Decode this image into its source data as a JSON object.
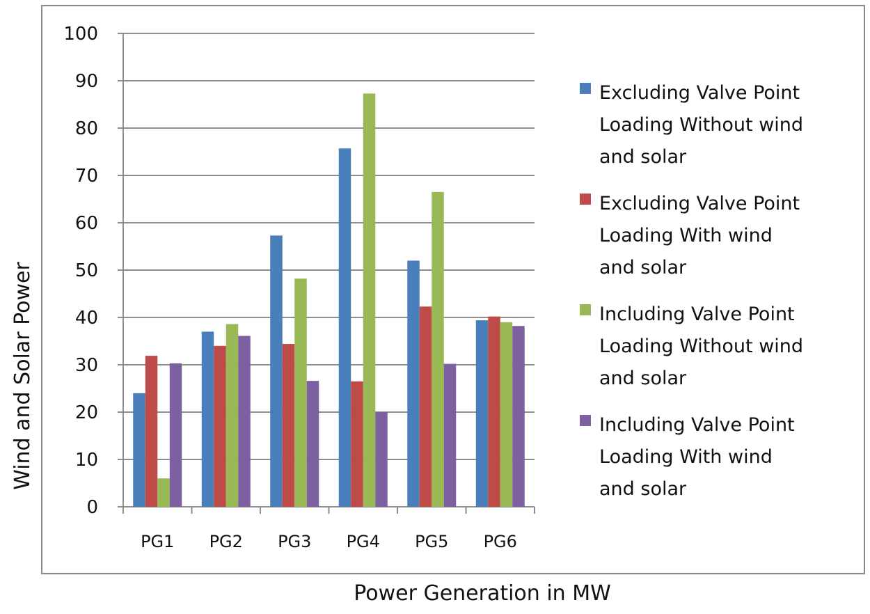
{
  "chart_data": {
    "type": "bar",
    "title": "",
    "xlabel": "Power Generation in MW",
    "ylabel": "Wind and Solar Power",
    "ylim": [
      0,
      100
    ],
    "yticks": [
      0,
      10,
      20,
      30,
      40,
      50,
      60,
      70,
      80,
      90,
      100
    ],
    "grid": true,
    "legend_position": "right",
    "categories": [
      "PG1",
      "PG2",
      "PG3",
      "PG4",
      "PG5",
      "PG6"
    ],
    "series": [
      {
        "name": "Excluding Valve Point Loading Without wind and solar",
        "legend_lines": [
          "Excluding Valve  Point",
          "Loading Without wind",
          "and solar"
        ],
        "color": "#4a7ebb",
        "values": [
          24,
          37,
          57.3,
          75.7,
          52,
          39.4
        ]
      },
      {
        "name": "Excluding Valve Point Loading With wind and solar",
        "legend_lines": [
          "Excluding Valve  Point",
          "Loading With  wind",
          "and solar"
        ],
        "color": "#be4b48",
        "values": [
          31.9,
          34,
          34.4,
          26.5,
          42.3,
          40.2
        ]
      },
      {
        "name": "Including Valve Point Loading Without wind and solar",
        "legend_lines": [
          "Including Valve  Point",
          "Loading Without wind",
          "and solar"
        ],
        "color": "#98b954",
        "values": [
          6,
          38.6,
          48.2,
          87.3,
          66.5,
          39
        ]
      },
      {
        "name": "Including Valve Point Loading With wind and solar",
        "legend_lines": [
          "Including Valve  Point",
          "Loading With  wind",
          "and solar"
        ],
        "color": "#7d60a0",
        "values": [
          30.3,
          36.1,
          26.6,
          20,
          30.2,
          38.2
        ]
      }
    ]
  }
}
